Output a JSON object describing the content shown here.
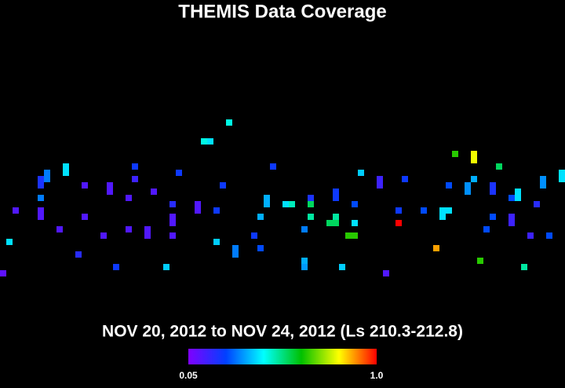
{
  "chart_data": {
    "type": "heatmap",
    "title": "THEMIS Data Coverage",
    "subtitle": "NOV 20, 2012 to NOV 24, 2012 (Ls 210.3-212.8)",
    "colormap": [
      "#8000ff",
      "#0040ff",
      "#00ffff",
      "#00c000",
      "#ffff00",
      "#ff0000"
    ],
    "clim": [
      0.05,
      1
    ],
    "cticks": [
      0.05,
      {
        "value": 1,
        "label": "1.0"
      }
    ],
    "cells": [
      {
        "col": 0,
        "row": 43,
        "value": 0.1
      },
      {
        "col": 1,
        "row": 38,
        "value": 0.4
      },
      {
        "col": 2,
        "row": 33,
        "value": 0.12
      },
      {
        "col": 6,
        "row": 28,
        "value": 0.2
      },
      {
        "col": 6,
        "row": 29,
        "value": 0.2
      },
      {
        "col": 7,
        "row": 27,
        "value": 0.3
      },
      {
        "col": 7,
        "row": 28,
        "value": 0.3
      },
      {
        "col": 6,
        "row": 33,
        "value": 0.12
      },
      {
        "col": 6,
        "row": 34,
        "value": 0.12
      },
      {
        "col": 6,
        "row": 31,
        "value": 0.3
      },
      {
        "col": 10,
        "row": 26,
        "value": 0.4
      },
      {
        "col": 10,
        "row": 27,
        "value": 0.4
      },
      {
        "col": 9,
        "row": 36,
        "value": 0.12
      },
      {
        "col": 12,
        "row": 40,
        "value": 0.18
      },
      {
        "col": 13,
        "row": 29,
        "value": 0.12
      },
      {
        "col": 13,
        "row": 34,
        "value": 0.12
      },
      {
        "col": 16,
        "row": 37,
        "value": 0.12
      },
      {
        "col": 17,
        "row": 29,
        "value": 0.12
      },
      {
        "col": 17,
        "row": 30,
        "value": 0.12
      },
      {
        "col": 18,
        "row": 42,
        "value": 0.22
      },
      {
        "col": 20,
        "row": 31,
        "value": 0.12
      },
      {
        "col": 20,
        "row": 36,
        "value": 0.12
      },
      {
        "col": 21,
        "row": 26,
        "value": 0.22
      },
      {
        "col": 21,
        "row": 28,
        "value": 0.15
      },
      {
        "col": 23,
        "row": 36,
        "value": 0.12
      },
      {
        "col": 23,
        "row": 37,
        "value": 0.12
      },
      {
        "col": 24,
        "row": 30,
        "value": 0.12
      },
      {
        "col": 26,
        "row": 42,
        "value": 0.38
      },
      {
        "col": 27,
        "row": 32,
        "value": 0.18
      },
      {
        "col": 27,
        "row": 34,
        "value": 0.12
      },
      {
        "col": 27,
        "row": 35,
        "value": 0.12
      },
      {
        "col": 27,
        "row": 37,
        "value": 0.12
      },
      {
        "col": 28,
        "row": 27,
        "value": 0.22
      },
      {
        "col": 31,
        "row": 32,
        "value": 0.12
      },
      {
        "col": 31,
        "row": 33,
        "value": 0.12
      },
      {
        "col": 32,
        "row": 22,
        "value": 0.45
      },
      {
        "col": 33,
        "row": 22,
        "value": 0.4
      },
      {
        "col": 34,
        "row": 33,
        "value": 0.22
      },
      {
        "col": 34,
        "row": 38,
        "value": 0.38
      },
      {
        "col": 35,
        "row": 29,
        "value": 0.22
      },
      {
        "col": 36,
        "row": 19,
        "value": 0.45
      },
      {
        "col": 37,
        "row": 39,
        "value": 0.3
      },
      {
        "col": 37,
        "row": 40,
        "value": 0.3
      },
      {
        "col": 40,
        "row": 37,
        "value": 0.22
      },
      {
        "col": 41,
        "row": 39,
        "value": 0.25
      },
      {
        "col": 41,
        "row": 34,
        "value": 0.35
      },
      {
        "col": 42,
        "row": 31,
        "value": 0.35
      },
      {
        "col": 42,
        "row": 32,
        "value": 0.35
      },
      {
        "col": 43,
        "row": 26,
        "value": 0.22
      },
      {
        "col": 45,
        "row": 32,
        "value": 0.4
      },
      {
        "col": 46,
        "row": 32,
        "value": 0.48
      },
      {
        "col": 48,
        "row": 36,
        "value": 0.3
      },
      {
        "col": 48,
        "row": 42,
        "value": 0.33
      },
      {
        "col": 48,
        "row": 41,
        "value": 0.35
      },
      {
        "col": 49,
        "row": 31,
        "value": 0.2
      },
      {
        "col": 49,
        "row": 32,
        "value": 0.55
      },
      {
        "col": 49,
        "row": 34,
        "value": 0.5
      },
      {
        "col": 53,
        "row": 30,
        "value": 0.22
      },
      {
        "col": 53,
        "row": 31,
        "value": 0.22
      },
      {
        "col": 52,
        "row": 35,
        "value": 0.55
      },
      {
        "col": 53,
        "row": 35,
        "value": 0.55
      },
      {
        "col": 53,
        "row": 34,
        "value": 0.5
      },
      {
        "col": 54,
        "row": 42,
        "value": 0.38
      },
      {
        "col": 56,
        "row": 32,
        "value": 0.25
      },
      {
        "col": 56,
        "row": 35,
        "value": 0.4
      },
      {
        "col": 55,
        "row": 37,
        "value": 0.65
      },
      {
        "col": 56,
        "row": 37,
        "value": 0.65
      },
      {
        "col": 57,
        "row": 27,
        "value": 0.38
      },
      {
        "col": 60,
        "row": 28,
        "value": 0.15
      },
      {
        "col": 60,
        "row": 29,
        "value": 0.15
      },
      {
        "col": 61,
        "row": 43,
        "value": 0.12
      },
      {
        "col": 63,
        "row": 33,
        "value": 0.22
      },
      {
        "col": 63,
        "row": 35,
        "value": 1
      },
      {
        "col": 64,
        "row": 28,
        "value": 0.22
      },
      {
        "col": 67,
        "row": 33,
        "value": 0.25
      },
      {
        "col": 69,
        "row": 39,
        "value": 0.88
      },
      {
        "col": 70,
        "row": 34,
        "value": 0.4
      },
      {
        "col": 70,
        "row": 33,
        "value": 0.4
      },
      {
        "col": 71,
        "row": 33,
        "value": 0.4
      },
      {
        "col": 71,
        "row": 29,
        "value": 0.25
      },
      {
        "col": 72,
        "row": 24,
        "value": 0.65
      },
      {
        "col": 75,
        "row": 24,
        "value": 0.8
      },
      {
        "col": 75,
        "row": 25,
        "value": 0.8
      },
      {
        "col": 74,
        "row": 29,
        "value": 0.32
      },
      {
        "col": 74,
        "row": 30,
        "value": 0.32
      },
      {
        "col": 75,
        "row": 28,
        "value": 0.35
      },
      {
        "col": 76,
        "row": 41,
        "value": 0.65
      },
      {
        "col": 77,
        "row": 36,
        "value": 0.25
      },
      {
        "col": 78,
        "row": 29,
        "value": 0.2
      },
      {
        "col": 78,
        "row": 30,
        "value": 0.2
      },
      {
        "col": 78,
        "row": 34,
        "value": 0.25
      },
      {
        "col": 79,
        "row": 26,
        "value": 0.55
      },
      {
        "col": 81,
        "row": 31,
        "value": 0.25
      },
      {
        "col": 82,
        "row": 30,
        "value": 0.4
      },
      {
        "col": 82,
        "row": 31,
        "value": 0.4
      },
      {
        "col": 81,
        "row": 34,
        "value": 0.15
      },
      {
        "col": 81,
        "row": 35,
        "value": 0.15
      },
      {
        "col": 83,
        "row": 42,
        "value": 0.5
      },
      {
        "col": 84,
        "row": 37,
        "value": 0.15
      },
      {
        "col": 85,
        "row": 32,
        "value": 0.18
      },
      {
        "col": 86,
        "row": 28,
        "value": 0.32
      },
      {
        "col": 86,
        "row": 29,
        "value": 0.32
      },
      {
        "col": 87,
        "row": 37,
        "value": 0.25
      },
      {
        "col": 89,
        "row": 27,
        "value": 0.4
      },
      {
        "col": 89,
        "row": 28,
        "value": 0.4
      }
    ]
  }
}
